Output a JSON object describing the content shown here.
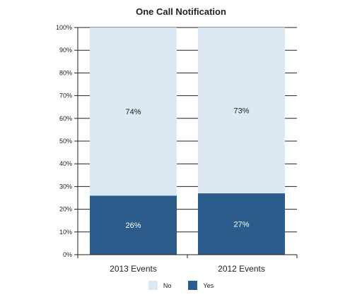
{
  "chart_data": {
    "type": "bar",
    "stacked": true,
    "title": "One Call Notification",
    "categories": [
      "2013 Events",
      "2012 Events"
    ],
    "series": [
      {
        "name": "Yes",
        "values": [
          26,
          27
        ],
        "labels": [
          "26%",
          "27%"
        ],
        "color": "#2b5c8c"
      },
      {
        "name": "No",
        "values": [
          74,
          73
        ],
        "labels": [
          "74%",
          "73%"
        ],
        "color": "#dce8f4"
      }
    ],
    "ylim": [
      0,
      100
    ],
    "yticks": [
      "0%",
      "10%",
      "20%",
      "30%",
      "40%",
      "50%",
      "60%",
      "70%",
      "80%",
      "90%",
      "100%"
    ],
    "grid": true,
    "legend_position": "bottom"
  },
  "legend": [
    {
      "label": "No",
      "color": "#dce8f4"
    },
    {
      "label": "Yes",
      "color": "#2b5c8c"
    }
  ]
}
